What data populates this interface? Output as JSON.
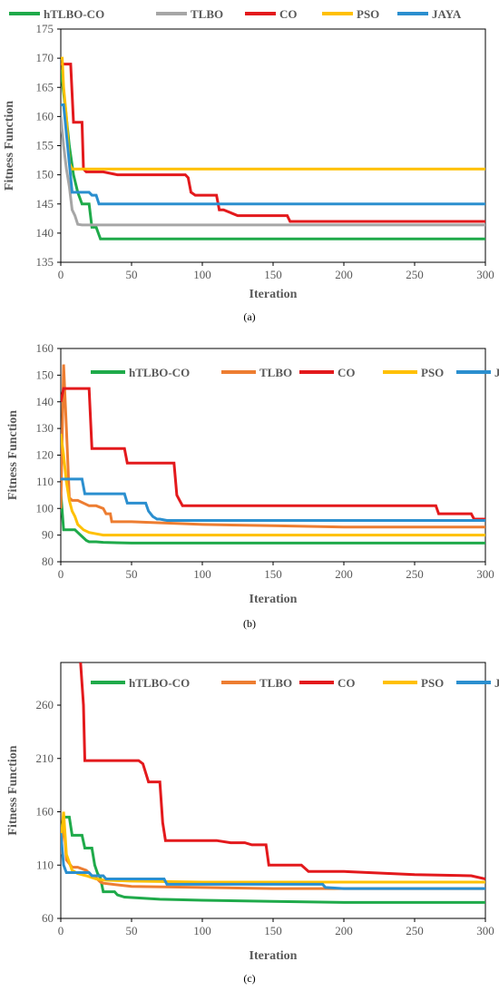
{
  "chart_data": [
    {
      "type": "line",
      "panel": "a",
      "caption": "(a)",
      "xlabel": "Iteration",
      "ylabel": "Fitness Function",
      "xlim": [
        0,
        300
      ],
      "ylim": [
        135,
        175
      ],
      "xticks": [
        0,
        50,
        100,
        150,
        200,
        250,
        300
      ],
      "yticks": [
        135,
        140,
        145,
        150,
        155,
        160,
        165,
        170,
        175
      ],
      "legend": "top",
      "colors": {
        "hTLBO-CO": "#1faa4a",
        "TLBO": "#a6a6a6",
        "CO": "#e3191c",
        "PSO": "#ffc000",
        "JAYA": "#2b8fcf"
      },
      "series": [
        {
          "name": "hTLBO-CO",
          "color": "#1faa4a",
          "x": [
            0,
            3,
            6,
            9,
            12,
            15,
            20,
            22,
            25,
            28,
            30,
            50,
            100,
            150,
            200,
            250,
            300
          ],
          "y": [
            168,
            162,
            155,
            150,
            147,
            145,
            145,
            141,
            141,
            139,
            139,
            139,
            139,
            139,
            139,
            139,
            139
          ]
        },
        {
          "name": "TLBO",
          "color": "#a6a6a6",
          "x": [
            0,
            2,
            4,
            6,
            8,
            10,
            12,
            15,
            20,
            50,
            100,
            150,
            200,
            250,
            300
          ],
          "y": [
            160,
            155,
            151,
            148,
            144,
            143,
            141.5,
            141.4,
            141.4,
            141.4,
            141.4,
            141.4,
            141.4,
            141.4,
            141.4
          ]
        },
        {
          "name": "CO",
          "color": "#e3191c",
          "x": [
            0,
            2,
            4,
            7,
            9,
            12,
            15,
            16,
            18,
            30,
            40,
            75,
            88,
            90,
            92,
            95,
            110,
            112,
            115,
            120,
            125,
            130,
            150,
            160,
            162,
            165,
            200,
            250,
            300
          ],
          "y": [
            169,
            169,
            169,
            169,
            159,
            159,
            159,
            151,
            150.5,
            150.5,
            150,
            150,
            150,
            149.5,
            147,
            146.5,
            146.5,
            144,
            144,
            143.5,
            143,
            143,
            143,
            143,
            142,
            142,
            142,
            142,
            142
          ]
        },
        {
          "name": "PSO",
          "color": "#ffc000",
          "x": [
            0,
            1,
            2,
            4,
            5,
            6,
            8,
            10,
            50,
            100,
            150,
            200,
            250,
            300
          ],
          "y": [
            170,
            170,
            165,
            160,
            156,
            152,
            151,
            151,
            151,
            151,
            151,
            151,
            151,
            151
          ]
        },
        {
          "name": "JAYA",
          "color": "#2b8fcf",
          "x": [
            0,
            2,
            4,
            6,
            8,
            10,
            12,
            20,
            22,
            25,
            27,
            30,
            50,
            100,
            150,
            200,
            250,
            300
          ],
          "y": [
            162,
            162,
            157,
            152,
            147,
            147,
            147,
            147,
            146.5,
            146.5,
            145,
            145,
            145,
            145,
            145,
            145,
            145,
            145
          ]
        }
      ]
    },
    {
      "type": "line",
      "panel": "b",
      "caption": "(b)",
      "xlabel": "Iteration",
      "ylabel": "Fitness Function",
      "xlim": [
        0,
        300
      ],
      "ylim": [
        80,
        160
      ],
      "xticks": [
        0,
        50,
        100,
        150,
        200,
        250,
        300
      ],
      "yticks": [
        80,
        90,
        100,
        110,
        120,
        130,
        140,
        150,
        160
      ],
      "legend": "top",
      "colors": {
        "hTLBO-CO": "#1faa4a",
        "TLBO": "#ed7d31",
        "CO": "#e3191c",
        "PSO": "#ffc000",
        "JAYA": "#2b8fcf"
      },
      "series": [
        {
          "name": "hTLBO-CO",
          "color": "#1faa4a",
          "x": [
            0,
            2,
            4,
            10,
            12,
            14,
            16,
            18,
            20,
            25,
            30,
            50,
            100,
            150,
            200,
            250,
            300
          ],
          "y": [
            106,
            92,
            92,
            92,
            91,
            90,
            89,
            88,
            87.5,
            87.5,
            87.3,
            87,
            87,
            87,
            87,
            87,
            87
          ]
        },
        {
          "name": "TLBO",
          "color": "#ed7d31",
          "x": [
            0,
            2,
            4,
            6,
            8,
            10,
            12,
            20,
            22,
            25,
            30,
            32,
            35,
            36,
            50,
            100,
            150,
            200,
            250,
            300
          ],
          "y": [
            100,
            154,
            130,
            104,
            103,
            103,
            103,
            101,
            101,
            101,
            100,
            98,
            98,
            95,
            95,
            94,
            93.5,
            93,
            93,
            93
          ]
        },
        {
          "name": "CO",
          "color": "#e3191c",
          "x": [
            0,
            2,
            10,
            20,
            22,
            30,
            40,
            45,
            47,
            60,
            80,
            82,
            84,
            86,
            100,
            150,
            200,
            250,
            265,
            267,
            280,
            290,
            292,
            300
          ],
          "y": [
            140,
            145,
            145,
            145,
            122.5,
            122.5,
            122.5,
            122.5,
            117,
            117,
            117,
            105,
            103,
            101,
            101,
            101,
            101,
            101,
            101,
            98,
            98,
            98,
            96,
            96
          ]
        },
        {
          "name": "PSO",
          "color": "#ffc000",
          "x": [
            0,
            2,
            4,
            6,
            8,
            10,
            12,
            14,
            16,
            20,
            25,
            30,
            50,
            100,
            150,
            200,
            250,
            300
          ],
          "y": [
            128,
            120,
            110,
            103,
            99,
            97,
            94,
            93,
            92,
            91,
            90.5,
            90,
            90,
            90,
            90,
            90,
            90,
            90
          ]
        },
        {
          "name": "JAYA",
          "color": "#2b8fcf",
          "x": [
            0,
            2,
            10,
            15,
            17,
            30,
            45,
            47,
            60,
            62,
            65,
            68,
            70,
            75,
            100,
            150,
            200,
            250,
            300
          ],
          "y": [
            111,
            111,
            111,
            111,
            105.5,
            105.5,
            105.5,
            102,
            102,
            99,
            97,
            96,
            96,
            95.5,
            95.5,
            95.5,
            95.5,
            95.5,
            95.5
          ]
        }
      ]
    },
    {
      "type": "line",
      "panel": "c",
      "caption": "(c)",
      "xlabel": "Iteration",
      "ylabel": "Fitness Function",
      "xlim": [
        0,
        300
      ],
      "ylim": [
        60,
        300
      ],
      "xticks": [
        0,
        50,
        100,
        150,
        200,
        250,
        300
      ],
      "yticks": [
        60,
        110,
        160,
        210,
        260
      ],
      "legend": "top",
      "colors": {
        "hTLBO-CO": "#1faa4a",
        "TLBO": "#ed7d31",
        "CO": "#e3191c",
        "PSO": "#ffc000",
        "JAYA": "#2b8fcf"
      },
      "series": [
        {
          "name": "hTLBO-CO",
          "color": "#1faa4a",
          "x": [
            0,
            2,
            6,
            8,
            15,
            17,
            22,
            24,
            26,
            28,
            30,
            38,
            40,
            45,
            70,
            100,
            150,
            200,
            250,
            300
          ],
          "y": [
            140,
            155,
            155,
            138,
            138,
            126,
            126,
            110,
            102,
            98,
            85,
            85,
            82,
            80,
            78,
            77,
            76,
            75,
            75,
            75
          ]
        },
        {
          "name": "TLBO",
          "color": "#ed7d31",
          "x": [
            0,
            2,
            4,
            8,
            12,
            18,
            22,
            25,
            28,
            30,
            50,
            100,
            150,
            200,
            250,
            300
          ],
          "y": [
            120,
            155,
            115,
            108,
            108,
            105,
            100,
            98,
            94,
            93,
            90,
            89,
            88,
            88,
            88,
            88
          ]
        },
        {
          "name": "CO",
          "color": "#e3191c",
          "x": [
            14,
            16,
            17,
            55,
            58,
            62,
            70,
            72,
            74,
            100,
            110,
            120,
            130,
            135,
            140,
            145,
            147,
            160,
            170,
            175,
            200,
            250,
            290,
            300
          ],
          "y": [
            300,
            260,
            208,
            208,
            205,
            188,
            188,
            150,
            133,
            133,
            133,
            131,
            131,
            129,
            129,
            129,
            110,
            110,
            110,
            104,
            104,
            101,
            100,
            97
          ]
        },
        {
          "name": "PSO",
          "color": "#ffc000",
          "x": [
            0,
            2,
            4,
            8,
            12,
            18,
            25,
            30,
            50,
            100,
            150,
            200,
            250,
            300
          ],
          "y": [
            130,
            160,
            120,
            105,
            102,
            100,
            97,
            96,
            95,
            94,
            94,
            94,
            94,
            94
          ]
        },
        {
          "name": "JAYA",
          "color": "#2b8fcf",
          "x": [
            0,
            2,
            4,
            20,
            22,
            30,
            32,
            73,
            75,
            100,
            150,
            185,
            187,
            200,
            250,
            300
          ],
          "y": [
            140,
            110,
            103,
            103,
            100,
            100,
            97,
            97,
            92,
            92,
            92,
            92,
            89,
            88,
            88,
            88
          ]
        }
      ]
    }
  ]
}
